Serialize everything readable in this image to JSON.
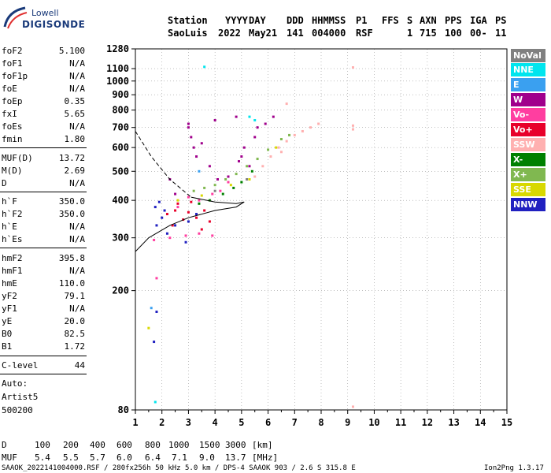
{
  "logo": {
    "line1": "Lowell",
    "line2": "DIGISONDE"
  },
  "header": {
    "labels": [
      "Station",
      "YYYY",
      "DAY",
      "DDD",
      "HHMMSS",
      "P1",
      "FFS",
      "S",
      "AXN",
      "PPS",
      "IGA",
      "PS"
    ],
    "values": [
      "SaoLuis",
      "2022",
      "May21",
      "141",
      "004000",
      "RSF",
      "1",
      "715",
      "100",
      "00-",
      "11"
    ]
  },
  "params_a": [
    {
      "k": "foF2",
      "v": "5.100"
    },
    {
      "k": "foF1",
      "v": "N/A"
    },
    {
      "k": "foF1p",
      "v": "N/A"
    },
    {
      "k": "foE",
      "v": "N/A"
    },
    {
      "k": "foEp",
      "v": "0.35"
    },
    {
      "k": "fxI",
      "v": "5.65"
    },
    {
      "k": "foEs",
      "v": "N/A"
    },
    {
      "k": "fmin",
      "v": "1.80"
    }
  ],
  "params_b": [
    {
      "k": "MUF(D)",
      "v": "13.72"
    },
    {
      "k": "M(D)",
      "v": "2.69"
    },
    {
      "k": "D",
      "v": "N/A"
    }
  ],
  "params_c": [
    {
      "k": "h`F",
      "v": "350.0"
    },
    {
      "k": "h`F2",
      "v": "350.0"
    },
    {
      "k": "h`E",
      "v": "N/A"
    },
    {
      "k": "h`Es",
      "v": "N/A"
    }
  ],
  "params_d": [
    {
      "k": "hmF2",
      "v": "395.8"
    },
    {
      "k": "hmF1",
      "v": "N/A"
    },
    {
      "k": "hmE",
      "v": "110.0"
    },
    {
      "k": "yF2",
      "v": "79.1"
    },
    {
      "k": "yF1",
      "v": "N/A"
    },
    {
      "k": "yE",
      "v": "20.0"
    },
    {
      "k": "B0",
      "v": "82.5"
    },
    {
      "k": "B1",
      "v": "1.72"
    }
  ],
  "clevel": {
    "k": "C-level",
    "v": "44"
  },
  "auto": [
    "Auto:",
    "Artist5",
    "500200"
  ],
  "legend": [
    {
      "label": "NoVal",
      "color": "#808080"
    },
    {
      "label": "NNE",
      "color": "#00e5ee"
    },
    {
      "label": "E",
      "color": "#3aa0f0"
    },
    {
      "label": "W",
      "color": "#a0008c"
    },
    {
      "label": "Vo-",
      "color": "#ff3ea0"
    },
    {
      "label": "Vo+",
      "color": "#e8002a"
    },
    {
      "label": "SSW",
      "color": "#ffb0b0"
    },
    {
      "label": "X-",
      "color": "#008000"
    },
    {
      "label": "X+",
      "color": "#80b850"
    },
    {
      "label": "SSE",
      "color": "#d8d800"
    },
    {
      "label": "NNW",
      "color": "#2020c0"
    }
  ],
  "muf_table": {
    "d_label": "D",
    "d_values": [
      "100",
      "200",
      "400",
      "600",
      "800",
      "1000",
      "1500",
      "3000"
    ],
    "d_unit": "[km]",
    "muf_label": "MUF",
    "muf_values": [
      "5.4",
      "5.5",
      "5.7",
      "6.0",
      "6.4",
      "7.1",
      "9.0",
      "13.7"
    ],
    "muf_unit": "[MHz]"
  },
  "footer": {
    "left": "SAAOK_2022141004000.RSF / 280fx256h 50 kHz 5.0 km / DPS-4 SAAOK 903 / 2.6 S 315.8 E",
    "right": "Ion2Png 1.3.17"
  },
  "chart_data": {
    "type": "scatter",
    "xlabel": "",
    "ylabel": "",
    "xlim": [
      1,
      15
    ],
    "ylim": [
      80,
      1280
    ],
    "x_scale": "linear",
    "y_scale": "log",
    "x_ticks": [
      1,
      2,
      3,
      4,
      5,
      6,
      7,
      8,
      9,
      10,
      11,
      12,
      13,
      14,
      15
    ],
    "y_ticks": [
      80,
      200,
      300,
      400,
      500,
      600,
      700,
      800,
      900,
      1000,
      1100,
      1280
    ],
    "grid": "dotted",
    "legend_position": "right",
    "profile_curve": {
      "description_units": "frequency MHz vs height km",
      "dashed": [
        [
          1,
          680
        ],
        [
          1.6,
          560
        ],
        [
          2.3,
          470
        ],
        [
          3.1,
          410
        ]
      ],
      "solid_lower": [
        [
          1,
          270
        ],
        [
          1.5,
          300
        ],
        [
          2.3,
          330
        ],
        [
          3,
          350
        ],
        [
          4,
          370
        ],
        [
          4.8,
          380
        ],
        [
          5.1,
          395
        ]
      ],
      "solid_upper": [
        [
          3.1,
          410
        ],
        [
          4,
          395
        ],
        [
          4.8,
          390
        ],
        [
          5.1,
          395
        ]
      ]
    },
    "series": [
      {
        "name": "NNW",
        "points": [
          [
            1.8,
            330
          ],
          [
            2.0,
            350
          ],
          [
            2.1,
            370
          ],
          [
            1.9,
            395
          ],
          [
            2.2,
            310
          ],
          [
            2.5,
            330
          ],
          [
            3.0,
            340
          ],
          [
            1.7,
            135
          ],
          [
            1.8,
            170
          ],
          [
            2.9,
            290
          ],
          [
            3.3,
            360
          ],
          [
            1.75,
            380
          ]
        ]
      },
      {
        "name": "Vo+",
        "points": [
          [
            2.2,
            360
          ],
          [
            2.5,
            370
          ],
          [
            2.8,
            345
          ],
          [
            3.0,
            365
          ],
          [
            3.3,
            350
          ],
          [
            3.6,
            370
          ],
          [
            2.6,
            390
          ],
          [
            3.1,
            395
          ],
          [
            2.4,
            330
          ],
          [
            3.8,
            340
          ],
          [
            3.5,
            320
          ]
        ]
      },
      {
        "name": "Vo-",
        "points": [
          [
            2.6,
            380
          ],
          [
            3.0,
            410
          ],
          [
            3.4,
            400
          ],
          [
            3.9,
            420
          ],
          [
            4.2,
            430
          ],
          [
            4.5,
            460
          ],
          [
            2.3,
            300
          ],
          [
            2.9,
            305
          ],
          [
            3.4,
            310
          ],
          [
            3.9,
            305
          ],
          [
            1.7,
            295
          ],
          [
            1.8,
            220
          ]
        ]
      },
      {
        "name": "W",
        "points": [
          [
            3.0,
            720
          ],
          [
            3.0,
            700
          ],
          [
            3.1,
            650
          ],
          [
            3.2,
            600
          ],
          [
            3.3,
            560
          ],
          [
            3.8,
            520
          ],
          [
            4.1,
            470
          ],
          [
            4.5,
            480
          ],
          [
            4.9,
            540
          ],
          [
            5.0,
            560
          ],
          [
            5.1,
            600
          ],
          [
            5.5,
            650
          ],
          [
            5.6,
            700
          ],
          [
            5.9,
            720
          ],
          [
            6.2,
            760
          ],
          [
            4.8,
            760
          ],
          [
            3.5,
            620
          ],
          [
            4.0,
            740
          ],
          [
            2.3,
            470
          ],
          [
            2.5,
            420
          ],
          [
            5.3,
            520
          ]
        ]
      },
      {
        "name": "X+",
        "points": [
          [
            3.2,
            430
          ],
          [
            3.6,
            440
          ],
          [
            4.0,
            450
          ],
          [
            4.4,
            470
          ],
          [
            4.8,
            490
          ],
          [
            5.2,
            520
          ],
          [
            5.6,
            550
          ],
          [
            6.0,
            590
          ],
          [
            6.5,
            640
          ],
          [
            6.8,
            660
          ]
        ]
      },
      {
        "name": "X-",
        "points": [
          [
            3.4,
            390
          ],
          [
            3.8,
            400
          ],
          [
            4.3,
            420
          ],
          [
            4.7,
            440
          ],
          [
            5.0,
            460
          ],
          [
            5.4,
            500
          ]
        ]
      },
      {
        "name": "SSE",
        "points": [
          [
            2.6,
            400
          ],
          [
            3.5,
            415
          ],
          [
            4.6,
            450
          ],
          [
            5.3,
            470
          ],
          [
            6.3,
            600
          ],
          [
            1.5,
            150
          ]
        ]
      },
      {
        "name": "SSW",
        "points": [
          [
            5.5,
            480
          ],
          [
            5.8,
            520
          ],
          [
            6.1,
            560
          ],
          [
            6.4,
            600
          ],
          [
            6.7,
            630
          ],
          [
            7.0,
            660
          ],
          [
            7.3,
            680
          ],
          [
            7.6,
            700
          ],
          [
            7.9,
            720
          ],
          [
            9.2,
            690
          ],
          [
            9.2,
            710
          ],
          [
            9.2,
            1110
          ],
          [
            9.2,
            82
          ],
          [
            6.7,
            840
          ],
          [
            6.5,
            580
          ]
        ]
      },
      {
        "name": "NNE",
        "points": [
          [
            3.6,
            1115
          ],
          [
            1.75,
            85
          ],
          [
            5.5,
            740
          ],
          [
            5.3,
            760
          ]
        ]
      },
      {
        "name": "E",
        "points": [
          [
            1.6,
            175
          ],
          [
            3.4,
            500
          ]
        ]
      },
      {
        "name": "NoVal",
        "points": [
          [
            4.0,
            430
          ],
          [
            5.2,
            470
          ]
        ]
      }
    ]
  }
}
